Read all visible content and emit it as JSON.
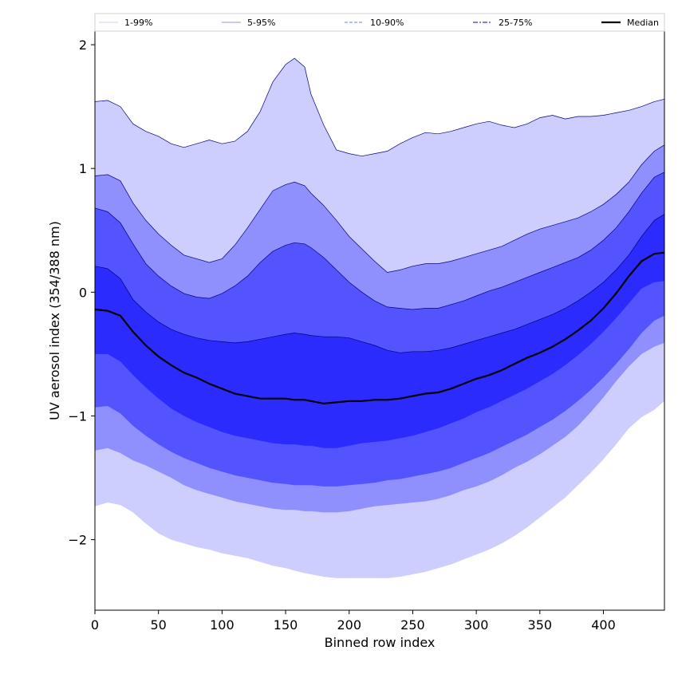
{
  "chart_data": {
    "type": "area",
    "title": "",
    "xlabel": "Binned row index",
    "ylabel": "UV aerosol index (354/388 nm)",
    "xlim": [
      0,
      448
    ],
    "ylim": [
      -2.57,
      2.11
    ],
    "xticks": [
      0,
      50,
      100,
      150,
      200,
      250,
      300,
      350,
      400
    ],
    "yticks": [
      -2,
      -1,
      0,
      1,
      2
    ],
    "ytick_labels": [
      "−2",
      "−1",
      "0",
      "1",
      "2"
    ],
    "grid": false,
    "legend_position": "top",
    "x": [
      0,
      10,
      20,
      30,
      40,
      50,
      60,
      70,
      80,
      90,
      100,
      110,
      120,
      130,
      140,
      150,
      157,
      165,
      170,
      180,
      190,
      200,
      210,
      220,
      230,
      240,
      250,
      260,
      270,
      280,
      290,
      300,
      310,
      320,
      330,
      340,
      350,
      360,
      370,
      380,
      390,
      400,
      410,
      420,
      430,
      440,
      448
    ],
    "bands": [
      {
        "name": "1-99%",
        "color": "#cdcdfe",
        "line_color": "#000080",
        "upper": [
          1.54,
          1.55,
          1.5,
          1.36,
          1.3,
          1.26,
          1.2,
          1.17,
          1.2,
          1.23,
          1.2,
          1.22,
          1.3,
          1.46,
          1.7,
          1.84,
          1.89,
          1.82,
          1.6,
          1.35,
          1.15,
          1.12,
          1.1,
          1.12,
          1.14,
          1.2,
          1.25,
          1.29,
          1.28,
          1.3,
          1.33,
          1.36,
          1.38,
          1.35,
          1.33,
          1.36,
          1.41,
          1.43,
          1.4,
          1.42,
          1.42,
          1.43,
          1.45,
          1.47,
          1.5,
          1.54,
          1.56
        ],
        "lower": [
          -1.73,
          -1.7,
          -1.72,
          -1.78,
          -1.87,
          -1.95,
          -2.0,
          -2.03,
          -2.06,
          -2.08,
          -2.11,
          -2.13,
          -2.15,
          -2.18,
          -2.21,
          -2.23,
          -2.25,
          -2.27,
          -2.28,
          -2.3,
          -2.31,
          -2.31,
          -2.31,
          -2.31,
          -2.31,
          -2.3,
          -2.28,
          -2.26,
          -2.23,
          -2.2,
          -2.16,
          -2.12,
          -2.08,
          -2.03,
          -1.97,
          -1.9,
          -1.82,
          -1.74,
          -1.66,
          -1.56,
          -1.46,
          -1.35,
          -1.23,
          -1.1,
          -1.01,
          -0.95,
          -0.88
        ]
      },
      {
        "name": "5-95%",
        "color": "#8f8ffe",
        "line_color": "#000080",
        "upper": [
          0.94,
          0.95,
          0.9,
          0.72,
          0.58,
          0.47,
          0.38,
          0.3,
          0.27,
          0.24,
          0.27,
          0.38,
          0.52,
          0.67,
          0.82,
          0.87,
          0.89,
          0.86,
          0.8,
          0.7,
          0.58,
          0.45,
          0.35,
          0.25,
          0.16,
          0.18,
          0.21,
          0.23,
          0.23,
          0.25,
          0.28,
          0.31,
          0.34,
          0.37,
          0.42,
          0.47,
          0.51,
          0.54,
          0.57,
          0.6,
          0.65,
          0.71,
          0.79,
          0.89,
          1.03,
          1.14,
          1.19
        ]
      },
      {
        "name": "10-90%",
        "color": "#5454fe",
        "line_color": "#000080",
        "upper": [
          0.68,
          0.65,
          0.56,
          0.39,
          0.23,
          0.13,
          0.05,
          -0.01,
          -0.04,
          -0.05,
          -0.01,
          0.05,
          0.13,
          0.24,
          0.33,
          0.38,
          0.4,
          0.39,
          0.36,
          0.28,
          0.18,
          0.08,
          0.0,
          -0.07,
          -0.12,
          -0.13,
          -0.14,
          -0.13,
          -0.13,
          -0.1,
          -0.07,
          -0.03,
          0.01,
          0.04,
          0.08,
          0.12,
          0.16,
          0.2,
          0.24,
          0.28,
          0.34,
          0.42,
          0.52,
          0.65,
          0.8,
          0.93,
          0.97
        ],
        "lower_5": [
          -1.28,
          -1.26,
          -1.3,
          -1.36,
          -1.4,
          -1.45,
          -1.5,
          -1.56,
          -1.6,
          -1.63,
          -1.66,
          -1.69,
          -1.71,
          -1.73,
          -1.75,
          -1.76,
          -1.76,
          -1.77,
          -1.77,
          -1.78,
          -1.78,
          -1.77,
          -1.75,
          -1.73,
          -1.72,
          -1.71,
          -1.7,
          -1.69,
          -1.67,
          -1.64,
          -1.6,
          -1.57,
          -1.53,
          -1.48,
          -1.42,
          -1.37,
          -1.31,
          -1.24,
          -1.17,
          -1.08,
          -0.97,
          -0.85,
          -0.72,
          -0.6,
          -0.5,
          -0.44,
          -0.41
        ]
      },
      {
        "name": "25-75%",
        "color": "#2b2bfe",
        "line_color": "#000080",
        "upper": [
          0.21,
          0.19,
          0.11,
          -0.06,
          -0.16,
          -0.24,
          -0.3,
          -0.34,
          -0.37,
          -0.39,
          -0.4,
          -0.41,
          -0.4,
          -0.38,
          -0.36,
          -0.34,
          -0.33,
          -0.34,
          -0.35,
          -0.36,
          -0.36,
          -0.37,
          -0.4,
          -0.43,
          -0.47,
          -0.49,
          -0.48,
          -0.48,
          -0.47,
          -0.45,
          -0.42,
          -0.39,
          -0.36,
          -0.33,
          -0.3,
          -0.26,
          -0.22,
          -0.18,
          -0.13,
          -0.07,
          0.0,
          0.08,
          0.18,
          0.3,
          0.45,
          0.58,
          0.63
        ],
        "lower_10": [
          -0.93,
          -0.92,
          -0.98,
          -1.08,
          -1.16,
          -1.23,
          -1.29,
          -1.34,
          -1.38,
          -1.42,
          -1.45,
          -1.48,
          -1.5,
          -1.52,
          -1.54,
          -1.55,
          -1.56,
          -1.56,
          -1.56,
          -1.57,
          -1.57,
          -1.56,
          -1.55,
          -1.54,
          -1.52,
          -1.51,
          -1.49,
          -1.47,
          -1.45,
          -1.42,
          -1.38,
          -1.34,
          -1.3,
          -1.25,
          -1.2,
          -1.15,
          -1.09,
          -1.03,
          -0.96,
          -0.88,
          -0.79,
          -0.69,
          -0.58,
          -0.46,
          -0.33,
          -0.23,
          -0.19
        ],
        "lower": [
          -0.5,
          -0.5,
          -0.56,
          -0.67,
          -0.77,
          -0.86,
          -0.94,
          -1.0,
          -1.05,
          -1.09,
          -1.13,
          -1.16,
          -1.18,
          -1.2,
          -1.22,
          -1.23,
          -1.23,
          -1.24,
          -1.24,
          -1.26,
          -1.26,
          -1.24,
          -1.22,
          -1.21,
          -1.2,
          -1.18,
          -1.16,
          -1.13,
          -1.1,
          -1.06,
          -1.02,
          -0.97,
          -0.93,
          -0.88,
          -0.83,
          -0.78,
          -0.72,
          -0.66,
          -0.59,
          -0.51,
          -0.42,
          -0.32,
          -0.21,
          -0.09,
          0.03,
          0.08,
          0.09
        ]
      }
    ],
    "median": {
      "name": "Median",
      "color": "#000000",
      "values": [
        -0.14,
        -0.15,
        -0.19,
        -0.32,
        -0.43,
        -0.52,
        -0.59,
        -0.65,
        -0.69,
        -0.74,
        -0.78,
        -0.82,
        -0.84,
        -0.86,
        -0.86,
        -0.86,
        -0.87,
        -0.87,
        -0.88,
        -0.9,
        -0.89,
        -0.88,
        -0.88,
        -0.87,
        -0.87,
        -0.86,
        -0.84,
        -0.82,
        -0.81,
        -0.78,
        -0.74,
        -0.7,
        -0.67,
        -0.63,
        -0.58,
        -0.53,
        -0.49,
        -0.44,
        -0.38,
        -0.31,
        -0.23,
        -0.13,
        -0.01,
        0.13,
        0.25,
        0.31,
        0.32
      ]
    },
    "legend": [
      {
        "label": "1-99%",
        "style": "line",
        "color": "#cdcdfe"
      },
      {
        "label": "5-95%",
        "style": "line",
        "color": "#8f8ffe"
      },
      {
        "label": "10-90%",
        "style": "dash",
        "color": "#8f8ffe"
      },
      {
        "label": "25-75%",
        "style": "dashdot",
        "color": "#5454fe"
      },
      {
        "label": "Median",
        "style": "solid",
        "color": "#000000"
      }
    ]
  }
}
